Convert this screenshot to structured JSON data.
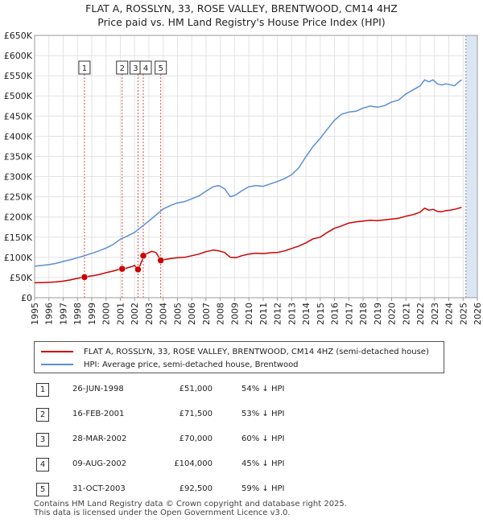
{
  "title": {
    "line1": "FLAT A, ROSSLYN, 33, ROSE VALLEY, BRENTWOOD, CM14 4HZ",
    "line2": "Price paid vs. HM Land Registry's House Price Index (HPI)"
  },
  "colors": {
    "property": "#cc0000",
    "hpi": "#5b8ed6",
    "marker_line": "#cc0000",
    "highlight": "#dbe6f5"
  },
  "chart_data": {
    "type": "line",
    "title": "Price paid vs. HM Land Registry's House Price Index (HPI)",
    "xlabel": "",
    "ylabel": "",
    "xlim": [
      1995,
      2026
    ],
    "ylim": [
      0,
      650000
    ],
    "grid": true,
    "legend_position": "bottom",
    "y_ticks": [
      {
        "value": 0,
        "label": "£0"
      },
      {
        "value": 50000,
        "label": "£50K"
      },
      {
        "value": 100000,
        "label": "£100K"
      },
      {
        "value": 150000,
        "label": "£150K"
      },
      {
        "value": 200000,
        "label": "£200K"
      },
      {
        "value": 250000,
        "label": "£250K"
      },
      {
        "value": 300000,
        "label": "£300K"
      },
      {
        "value": 350000,
        "label": "£350K"
      },
      {
        "value": 400000,
        "label": "£400K"
      },
      {
        "value": 450000,
        "label": "£450K"
      },
      {
        "value": 500000,
        "label": "£500K"
      },
      {
        "value": 550000,
        "label": "£550K"
      },
      {
        "value": 600000,
        "label": "£600K"
      },
      {
        "value": 650000,
        "label": "£650K"
      }
    ],
    "x_ticks": [
      "1995",
      "1996",
      "1997",
      "1998",
      "1999",
      "2000",
      "2001",
      "2002",
      "2003",
      "2004",
      "2005",
      "2006",
      "2007",
      "2008",
      "2009",
      "2010",
      "2011",
      "2012",
      "2013",
      "2014",
      "2015",
      "2016",
      "2017",
      "2018",
      "2019",
      "2020",
      "2021",
      "2022",
      "2023",
      "2024",
      "2025",
      "2026"
    ],
    "highlight_range": [
      2025.2,
      2026
    ],
    "series": [
      {
        "name": "FLAT A, ROSSLYN, 33, ROSE VALLEY, BRENTWOOD, CM14 4HZ (semi-detached house)",
        "color": "#cc0000",
        "x": [
          1995,
          1995.5,
          1996,
          1996.5,
          1997,
          1997.5,
          1998,
          1998.49,
          1998.8,
          1999.2,
          1999.6,
          2000,
          2000.5,
          2000.9,
          2001.13,
          2001.4,
          2001.8,
          2002.0,
          2002.24,
          2002.4,
          2002.55,
          2002.61,
          2002.9,
          2003.2,
          2003.5,
          2003.83,
          2004.0,
          2004.5,
          2005,
          2005.5,
          2006,
          2006.5,
          2007,
          2007.5,
          2007.9,
          2008.3,
          2008.7,
          2009.1,
          2009.5,
          2010,
          2010.5,
          2011,
          2011.5,
          2012,
          2012.5,
          2013,
          2013.5,
          2014,
          2014.5,
          2015,
          2015.5,
          2016,
          2016.5,
          2017,
          2017.5,
          2018,
          2018.5,
          2019,
          2019.5,
          2020,
          2020.5,
          2021,
          2021.5,
          2022,
          2022.3,
          2022.6,
          2022.9,
          2023.2,
          2023.5,
          2023.8,
          2024.1,
          2024.4,
          2024.7,
          2024.9
        ],
        "y": [
          37000,
          37500,
          38000,
          39000,
          41000,
          44000,
          48000,
          51000,
          53000,
          55000,
          58000,
          62000,
          66000,
          70000,
          71500,
          73000,
          77000,
          80000,
          70000,
          82000,
          95000,
          104000,
          110000,
          115000,
          112000,
          92500,
          94000,
          97000,
          99000,
          100000,
          104000,
          108000,
          114000,
          118000,
          116000,
          112000,
          100000,
          99000,
          104000,
          108000,
          110000,
          109000,
          111000,
          112000,
          116000,
          122000,
          128000,
          136000,
          146000,
          150000,
          162000,
          172000,
          178000,
          185000,
          188000,
          190000,
          192000,
          191000,
          193000,
          195000,
          197000,
          202000,
          206000,
          212000,
          222000,
          217000,
          219000,
          214000,
          213000,
          216000,
          217000,
          219000,
          222000,
          224000
        ]
      },
      {
        "name": "HPI: Average price, semi-detached house, Brentwood",
        "color": "#5b8ed6",
        "x": [
          1995,
          1995.5,
          1996,
          1996.5,
          1997,
          1997.5,
          1998,
          1998.5,
          1999,
          1999.5,
          2000,
          2000.5,
          2001,
          2001.5,
          2002,
          2002.5,
          2003,
          2003.5,
          2004,
          2004.5,
          2005,
          2005.5,
          2006,
          2006.5,
          2007,
          2007.5,
          2007.9,
          2008.3,
          2008.7,
          2009.1,
          2009.5,
          2010,
          2010.5,
          2011,
          2011.5,
          2012,
          2012.5,
          2013,
          2013.5,
          2014,
          2014.5,
          2015,
          2015.5,
          2016,
          2016.5,
          2017,
          2017.5,
          2018,
          2018.5,
          2019,
          2019.5,
          2020,
          2020.5,
          2021,
          2021.5,
          2022,
          2022.3,
          2022.6,
          2022.9,
          2023.2,
          2023.5,
          2023.8,
          2024.1,
          2024.4,
          2024.7,
          2024.9
        ],
        "y": [
          78000,
          80000,
          82000,
          85000,
          90000,
          94000,
          99000,
          104000,
          110000,
          116000,
          123000,
          132000,
          145000,
          153000,
          162000,
          176000,
          190000,
          205000,
          220000,
          228000,
          235000,
          238000,
          245000,
          252000,
          264000,
          275000,
          278000,
          270000,
          250000,
          255000,
          265000,
          275000,
          278000,
          276000,
          282000,
          288000,
          295000,
          305000,
          322000,
          350000,
          375000,
          395000,
          418000,
          440000,
          455000,
          460000,
          462000,
          470000,
          475000,
          472000,
          476000,
          485000,
          490000,
          505000,
          515000,
          525000,
          540000,
          535000,
          540000,
          530000,
          527000,
          530000,
          528000,
          525000,
          535000,
          540000
        ]
      }
    ],
    "markers": [
      {
        "id": "1",
        "x": 1998.49,
        "y": 51000
      },
      {
        "id": "2",
        "x": 2001.13,
        "y": 71500
      },
      {
        "id": "3",
        "x": 2002.24,
        "y": 70000
      },
      {
        "id": "4",
        "x": 2002.61,
        "y": 104000
      },
      {
        "id": "5",
        "x": 2003.83,
        "y": 92500
      }
    ]
  },
  "legend": {
    "property_label": "FLAT A, ROSSLYN, 33, ROSE VALLEY, BRENTWOOD, CM14 4HZ (semi-detached house)",
    "hpi_label": "HPI: Average price, semi-detached house, Brentwood"
  },
  "transactions": [
    {
      "num": "1",
      "date": "26-JUN-1998",
      "price": "£51,000",
      "hpi": "54% ↓ HPI"
    },
    {
      "num": "2",
      "date": "16-FEB-2001",
      "price": "£71,500",
      "hpi": "53% ↓ HPI"
    },
    {
      "num": "3",
      "date": "28-MAR-2002",
      "price": "£70,000",
      "hpi": "60% ↓ HPI"
    },
    {
      "num": "4",
      "date": "09-AUG-2002",
      "price": "£104,000",
      "hpi": "45% ↓ HPI"
    },
    {
      "num": "5",
      "date": "31-OCT-2003",
      "price": "£92,500",
      "hpi": "59% ↓ HPI"
    }
  ],
  "footer": {
    "line1": "Contains HM Land Registry data © Crown copyright and database right 2025.",
    "line2": "This data is licensed under the Open Government Licence v3.0."
  }
}
